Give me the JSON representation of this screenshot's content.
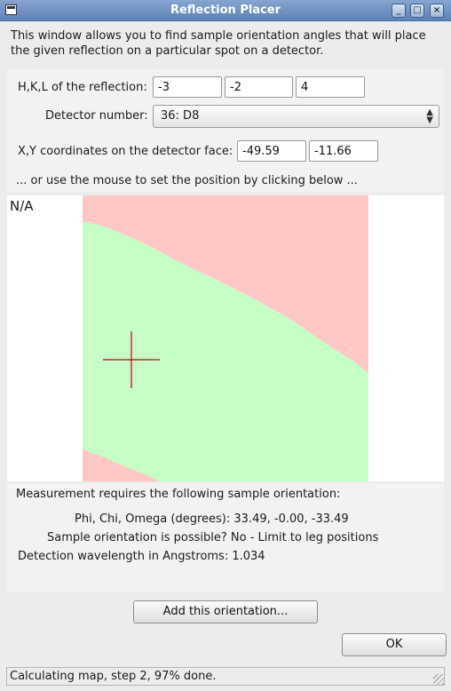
{
  "window": {
    "title": "Reflection Placer"
  },
  "intro_text": "This window allows you to find sample orientation angles that will place the given reflection on a particular spot on a detector.",
  "hkl": {
    "label": "H,K,L of the reflection:",
    "h": "-3",
    "k": "-2",
    "l": "4"
  },
  "detector": {
    "label": "Detector number:",
    "selected": "36: D8"
  },
  "xy": {
    "label": "X,Y coordinates on the detector face:",
    "x": "-49.59",
    "y": "-11.66"
  },
  "mouse_hint": "... or use the mouse to set the position by clicking below ...",
  "map": {
    "corner_label": "N/A",
    "colors": {
      "possible": "#c6ffc6",
      "impossible": "#ffc6c6",
      "crosshair": "#c00000"
    }
  },
  "results": {
    "heading": "Measurement requires the following sample orientation:",
    "angles_label": "Phi, Chi, Omega (degrees):",
    "angles_value": "33.49, -0.00, -33.49",
    "possible_label": "Sample orientation is possible?",
    "possible_value": "No - Limit to leg positions",
    "wavelength_label": "Detection wavelength in Angstroms:",
    "wavelength_value": "1.034"
  },
  "buttons": {
    "add": "Add this orientation...",
    "ok": "OK"
  },
  "status": "Calculating map, step 2, 97% done."
}
